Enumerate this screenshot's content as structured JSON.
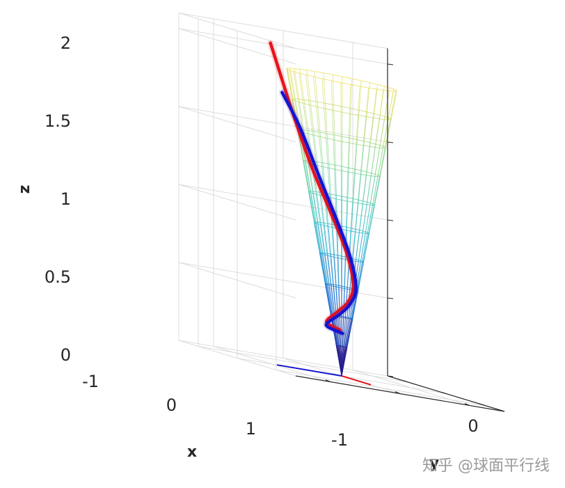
{
  "chart_data": {
    "type": "line",
    "projection": "3d",
    "xlabel": "x",
    "ylabel": "y",
    "zlabel": "z",
    "xlim": [
      -1.5,
      1.5
    ],
    "ylim": [
      -1.5,
      1.5
    ],
    "zlim": [
      0,
      2.1
    ],
    "xticks": [
      "-1",
      "0",
      "1"
    ],
    "yticks": [
      "-1",
      "0"
    ],
    "zticks": [
      "0",
      "0.5",
      "1",
      "1.5",
      "2"
    ],
    "grid": true,
    "colors": {
      "curve_red": "#e8141c",
      "curve_blue": "#1414d2",
      "grid": "#dcdcdc",
      "box": "#262626"
    },
    "surface": {
      "kind": "cone",
      "apex": [
        0,
        0,
        0
      ],
      "half_angle_deg": 20,
      "height": 1.9,
      "colormap": [
        "#2a0a7e",
        "#1b6fd1",
        "#30c0c8",
        "#90d890",
        "#f0e060"
      ]
    },
    "series": [
      {
        "color": "red",
        "x": [
          0.22,
          0.05,
          -0.15,
          -0.2,
          -0.1,
          0.12,
          0.22,
          0.15,
          0.05,
          -0.05,
          -0.22
        ],
        "y": [
          0.15,
          0.22,
          0.12,
          -0.05,
          -0.15,
          -0.1,
          0.05,
          0.25,
          0.45,
          0.65,
          0.9
        ],
        "z": [
          0.3,
          0.32,
          0.34,
          0.4,
          0.48,
          0.6,
          0.8,
          1.05,
          1.3,
          1.6,
          2.05
        ]
      },
      {
        "color": "blue",
        "x": [
          0.2,
          0.0,
          -0.18,
          -0.22,
          -0.12,
          0.1,
          0.22,
          0.2,
          0.1,
          0.0,
          -0.1
        ],
        "y": [
          0.1,
          0.2,
          0.1,
          -0.08,
          -0.18,
          -0.15,
          0.0,
          0.2,
          0.4,
          0.6,
          0.8
        ],
        "z": [
          0.28,
          0.3,
          0.32,
          0.38,
          0.46,
          0.58,
          0.78,
          1.02,
          1.28,
          1.55,
          1.75
        ]
      }
    ],
    "triad": {
      "x_color": "#e8141c",
      "y_color": "#1414d2"
    }
  },
  "watermark": "知乎 @球面平行线"
}
